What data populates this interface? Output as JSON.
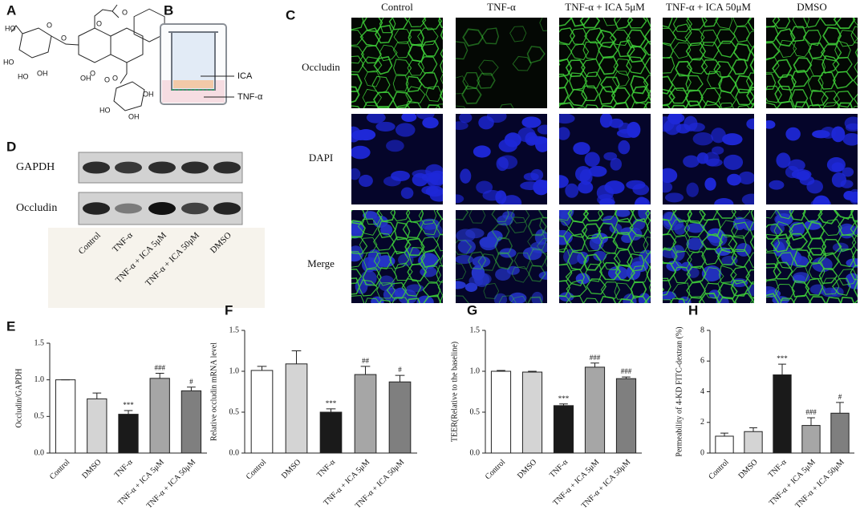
{
  "panels": {
    "a": {
      "label": "A",
      "atoms": [
        "HO",
        "O",
        "O",
        "HO",
        "HO",
        "OH",
        "O",
        "OH",
        "O",
        "O",
        "O",
        "O",
        "OH",
        "HO",
        "OH"
      ]
    },
    "b": {
      "label": "B",
      "top_label": "ICA",
      "bottom_label": "TNF-α"
    },
    "c": {
      "label": "C",
      "columns": [
        "Control",
        "TNF-α",
        "TNF-α + ICA 5μM",
        "TNF-α + ICA 50μM",
        "DMSO"
      ],
      "rows": [
        "Occludin",
        "DAPI",
        "Merge"
      ]
    },
    "d": {
      "label": "D",
      "rows": [
        "GAPDH",
        "Occludin"
      ],
      "lanes": [
        "Control",
        "TNF-α",
        "TNF-α + ICA 5μM",
        "TNF-α + ICA 50μM",
        "DMSO"
      ]
    }
  },
  "chart_data": [
    {
      "type": "bar",
      "label": "E",
      "ylabel": "Occludin/GAPDH",
      "categories": [
        "Control",
        "DMSO",
        "TNF-α",
        "TNF-α + ICA 5μM",
        "TNF-α + ICA 50μM"
      ],
      "values": [
        1.0,
        0.74,
        0.53,
        1.02,
        0.85
      ],
      "errors": [
        0.0,
        0.08,
        0.05,
        0.07,
        0.05
      ],
      "annotations": [
        null,
        null,
        "***",
        "###",
        "#"
      ],
      "colors": [
        "#ffffff",
        "#d4d4d4",
        "#1a1a1a",
        "#a6a6a6",
        "#7f7f7f"
      ],
      "ylim": [
        0,
        1.5
      ],
      "yticks": [
        {
          "value": 0,
          "label": "0.0"
        },
        {
          "value": 0.5,
          "label": "0.5"
        },
        {
          "value": 1,
          "label": "1.0"
        },
        {
          "value": 1.5,
          "label": "1.5"
        }
      ]
    },
    {
      "type": "bar",
      "label": "F",
      "ylabel": "Relative occludin mRNA level",
      "categories": [
        "Control",
        "DMSO",
        "TNF-α",
        "TNF-α + ICA 5μM",
        "TNF-α + ICA 50μM"
      ],
      "values": [
        1.01,
        1.09,
        0.5,
        0.96,
        0.87
      ],
      "errors": [
        0.05,
        0.16,
        0.04,
        0.1,
        0.08
      ],
      "annotations": [
        null,
        null,
        "***",
        "##",
        "#"
      ],
      "colors": [
        "#ffffff",
        "#d4d4d4",
        "#1a1a1a",
        "#a6a6a6",
        "#7f7f7f"
      ],
      "ylim": [
        0,
        1.5
      ],
      "yticks": [
        {
          "value": 0,
          "label": "0.0"
        },
        {
          "value": 0.5,
          "label": "0.5"
        },
        {
          "value": 1,
          "label": "1.0"
        },
        {
          "value": 1.5,
          "label": "1.5"
        }
      ]
    },
    {
      "type": "bar",
      "label": "G",
      "ylabel": "TEER(Relative to the baseline)",
      "categories": [
        "Control",
        "DMSO",
        "TNF-α",
        "TNF-α + ICA 5μM",
        "TNF-α + ICA 50μM"
      ],
      "values": [
        1.0,
        0.99,
        0.58,
        1.05,
        0.91
      ],
      "errors": [
        0.01,
        0.01,
        0.02,
        0.05,
        0.02
      ],
      "annotations": [
        null,
        null,
        "***",
        "###",
        "###"
      ],
      "colors": [
        "#ffffff",
        "#d4d4d4",
        "#1a1a1a",
        "#a6a6a6",
        "#7f7f7f"
      ],
      "ylim": [
        0,
        1.5
      ],
      "yticks": [
        {
          "value": 0,
          "label": "0.0"
        },
        {
          "value": 0.5,
          "label": "0.5"
        },
        {
          "value": 1,
          "label": "1.0"
        },
        {
          "value": 1.5,
          "label": "1.5"
        }
      ]
    },
    {
      "type": "bar",
      "label": "H",
      "ylabel": "Permeability of 4-KD FITC-dextran (%)",
      "categories": [
        "Control",
        "DMSO",
        "TNF-α",
        "TNF-α + ICA 5μM",
        "TNF-α + ICA 50μM"
      ],
      "values": [
        1.1,
        1.4,
        5.1,
        1.8,
        2.6
      ],
      "errors": [
        0.2,
        0.25,
        0.7,
        0.5,
        0.7
      ],
      "annotations": [
        null,
        null,
        "***",
        "###",
        "#"
      ],
      "colors": [
        "#ffffff",
        "#d4d4d4",
        "#1a1a1a",
        "#a6a6a6",
        "#7f7f7f"
      ],
      "ylim": [
        0,
        8
      ],
      "yticks": [
        0,
        2,
        4,
        6,
        8
      ]
    }
  ]
}
